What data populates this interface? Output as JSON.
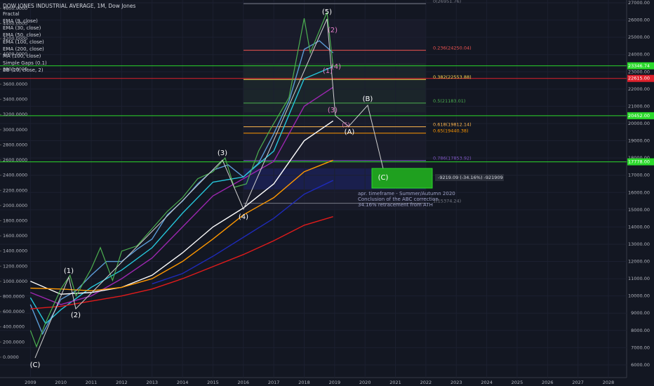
{
  "chart_data": {
    "type": "line",
    "title": "DOW JONES INDUSTRIAL AVERAGE, 1M, Dow Jones",
    "indicators": [
      "Fractal",
      "Simple Gaps (0.1)",
      "BB (20, close, 2)"
    ],
    "xlim": [
      2008.0,
      2028.6
    ],
    "xticks": [
      2009,
      2010,
      2011,
      2012,
      2013,
      2014,
      2015,
      2016,
      2017,
      2018,
      2019,
      2020,
      2021,
      2022,
      2023,
      2024,
      2025,
      2026,
      2027,
      2028
    ],
    "ylim": [
      5265,
      27163
    ],
    "yticks": [
      {
        "value": 6000,
        "label": "6000.00"
      },
      {
        "value": 7000,
        "label": "7000.00"
      },
      {
        "value": 8000,
        "label": "8000.00"
      },
      {
        "value": 9000,
        "label": "9000.00"
      },
      {
        "value": 10000,
        "label": "10000.00"
      },
      {
        "value": 11000,
        "label": "11000.00"
      },
      {
        "value": 12000,
        "label": "12000.00"
      },
      {
        "value": 13000,
        "label": "13000.00"
      },
      {
        "value": 14000,
        "label": "14000.00"
      },
      {
        "value": 15000,
        "label": "15000.00"
      },
      {
        "value": 16000,
        "label": "16000.00"
      },
      {
        "value": 17000,
        "label": "17000.00"
      },
      {
        "value": 18000,
        "label": "18000.00"
      },
      {
        "value": 19000,
        "label": "19000.00"
      },
      {
        "value": 20000,
        "label": "20000.00"
      },
      {
        "value": 21000,
        "label": "21000.00"
      },
      {
        "value": 22000,
        "label": "22000.00"
      },
      {
        "value": 23000,
        "label": "23000.00"
      },
      {
        "value": 24000,
        "label": "24000.00"
      },
      {
        "value": 25000,
        "label": "25000.00"
      },
      {
        "value": 26000,
        "label": "26000.00"
      },
      {
        "value": 27000,
        "label": "27000.00"
      }
    ],
    "y2lim": [
      -269,
      4711
    ],
    "y2ticks": [
      {
        "value": 0,
        "label": "0.0000"
      },
      {
        "value": 200,
        "label": "200.0000"
      },
      {
        "value": 400,
        "label": "400.0000"
      },
      {
        "value": 600,
        "label": "600.0000"
      },
      {
        "value": 800,
        "label": "800.0000"
      },
      {
        "value": 1000,
        "label": "1000.0000"
      },
      {
        "value": 1200,
        "label": "1200.0000"
      },
      {
        "value": 1400,
        "label": "1400.0000"
      },
      {
        "value": 1600,
        "label": "1600.0000"
      },
      {
        "value": 1800,
        "label": "1800.0000"
      },
      {
        "value": 2000,
        "label": "2000.0000"
      },
      {
        "value": 2200,
        "label": "2200.0000"
      },
      {
        "value": 2400,
        "label": "2400.0000"
      },
      {
        "value": 2600,
        "label": "2600.0000"
      },
      {
        "value": 2800,
        "label": "2800.0000"
      },
      {
        "value": 3000,
        "label": "3000.0000"
      },
      {
        "value": 3200,
        "label": "3200.0000"
      },
      {
        "value": 3400,
        "label": "3400.0000"
      },
      {
        "value": 3600,
        "label": "3600.0000"
      },
      {
        "value": 3800,
        "label": "3800.0000"
      },
      {
        "value": 4000,
        "label": "4000.0000"
      },
      {
        "value": 4200,
        "label": "4200.0000"
      },
      {
        "value": 4400,
        "label": "4400.0000"
      },
      {
        "value": 4600,
        "label": "4600.0000"
      }
    ],
    "grid": true,
    "price": {
      "color": "#4caf50",
      "x": [
        2009.0,
        2009.2,
        2009.5,
        2010.0,
        2010.3,
        2010.5,
        2011.0,
        2011.3,
        2011.7,
        2012.0,
        2012.5,
        2013.0,
        2013.5,
        2014.0,
        2014.5,
        2015.0,
        2015.4,
        2015.7,
        2016.1,
        2016.5,
        2016.9,
        2017.5,
        2018.0,
        2018.2,
        2018.75,
        2018.95
      ],
      "values": [
        8000,
        7060,
        8450,
        10400,
        11200,
        10000,
        11580,
        12800,
        10900,
        12600,
        12900,
        13900,
        14900,
        15700,
        16800,
        17200,
        18000,
        16300,
        16500,
        18400,
        19700,
        21500,
        26100,
        24100,
        26450,
        23300
      ]
    },
    "series": [
      {
        "name": "EMA (9, close)",
        "color": "#5b9bd5",
        "x": [
          2009.0,
          2009.4,
          2010.0,
          2010.5,
          2011.0,
          2011.5,
          2012.0,
          2012.5,
          2013.0,
          2013.5,
          2014.0,
          2014.5,
          2015.0,
          2015.5,
          2016.0,
          2016.5,
          2017.0,
          2017.5,
          2018.0,
          2018.5,
          2018.95
        ],
        "values": [
          9500,
          7800,
          9800,
          10300,
          11200,
          12000,
          12000,
          12700,
          13300,
          14700,
          15500,
          16500,
          17300,
          17600,
          16900,
          17700,
          19400,
          21300,
          24300,
          24800,
          24100
        ]
      },
      {
        "name": "EMA (30, close)",
        "color": "#26c6da",
        "x": [
          2009.0,
          2009.5,
          2010.0,
          2011.0,
          2012.0,
          2013.0,
          2014.0,
          2015.0,
          2016.0,
          2017.0,
          2018.0,
          2018.95
        ],
        "values": [
          9900,
          8400,
          9200,
          10500,
          11500,
          12800,
          14800,
          16600,
          16900,
          18400,
          22600,
          23300
        ]
      },
      {
        "name": "EMA (50, close)",
        "color": "#9c27b0",
        "x": [
          2009.0,
          2010.0,
          2011.0,
          2012.0,
          2013.0,
          2014.0,
          2015.0,
          2016.0,
          2017.0,
          2018.0,
          2018.95
        ],
        "values": [
          10200,
          9500,
          10000,
          11000,
          12200,
          14000,
          15800,
          16800,
          17800,
          21000,
          22100
        ]
      },
      {
        "name": "EMA (100, close)",
        "color": "#ffffff",
        "x": [
          2009.0,
          2010.0,
          2011.0,
          2012.0,
          2013.0,
          2014.0,
          2015.0,
          2016.0,
          2017.0,
          2018.0,
          2018.95
        ],
        "values": [
          10850,
          10100,
          10200,
          10500,
          11200,
          12500,
          14000,
          15100,
          16500,
          19000,
          20150
        ]
      },
      {
        "name": "EMA (200, close)",
        "color": "#ff9800",
        "x": [
          2009.0,
          2010.0,
          2011.0,
          2012.0,
          2013.0,
          2014.0,
          2015.0,
          2016.0,
          2017.0,
          2018.0,
          2018.95
        ],
        "values": [
          10450,
          10400,
          10300,
          10500,
          11000,
          12000,
          13300,
          14700,
          15700,
          17200,
          17870
        ]
      },
      {
        "name": "MA (100, close)",
        "color": "#1e2ab8",
        "x": [
          2013.0,
          2014.0,
          2015.0,
          2016.0,
          2017.0,
          2018.0,
          2018.95
        ],
        "values": [
          10700,
          11300,
          12300,
          13400,
          14500,
          15900,
          16700
        ]
      },
      {
        "color": "#e01b1b",
        "x": [
          2009.0,
          2010.0,
          2011.0,
          2012.0,
          2013.0,
          2014.0,
          2015.0,
          2016.0,
          2017.0,
          2018.0,
          2018.95
        ],
        "values": [
          9250,
          9400,
          9700,
          10000,
          10400,
          11000,
          11700,
          12400,
          13200,
          14100,
          14600
        ]
      }
    ],
    "hlines": [
      {
        "value": 23346.74,
        "label": "23346.74",
        "color": "#2bd92b"
      },
      {
        "value": 22615,
        "label": "22615.00",
        "color": "#e0202b"
      },
      {
        "value": 20452,
        "label": "20452.00",
        "color": "#2bd92b"
      },
      {
        "value": 17778,
        "label": "17778.00",
        "color": "#2bd92b"
      }
    ],
    "fib_levels": [
      {
        "value": 26951.76,
        "label": "0(26951.76)",
        "color": "#787b86"
      },
      {
        "value": 24250.04,
        "label": "0.236(24250.04)",
        "color": "#ef5350"
      },
      {
        "value": 22553.88,
        "label": "0.382(22553.88)",
        "color": "#ffd54f"
      },
      {
        "value": 21183.01,
        "label": "0.5(21183.01)",
        "color": "#4caf50"
      },
      {
        "value": 19812.14,
        "label": "0.618(19812.14)",
        "color": "#ffb74d"
      },
      {
        "value": 19440.38,
        "label": "0.65(19440.38)",
        "color": "#ff9800"
      },
      {
        "value": 17853.92,
        "label": "0.786(17853.92)",
        "color": "#7e57c2"
      },
      {
        "value": 15374.24,
        "label": "1(15374.24)",
        "color": "#787b86"
      }
    ],
    "waves": [
      "(5)",
      "(2)",
      "(1)",
      "(4)",
      "(3)",
      "(5)",
      "(A)",
      "(B)",
      "(C)",
      "(1)",
      "(2)",
      "(3)",
      "(4)",
      "(C)"
    ],
    "measure_label": "-9219.09 (-34.16%) -921909",
    "notes": [
      "apr. timeframe -  Summer/Autumn 2020",
      "Conclusion of the ABC correction",
      "34.16% retracement from ATH"
    ]
  }
}
